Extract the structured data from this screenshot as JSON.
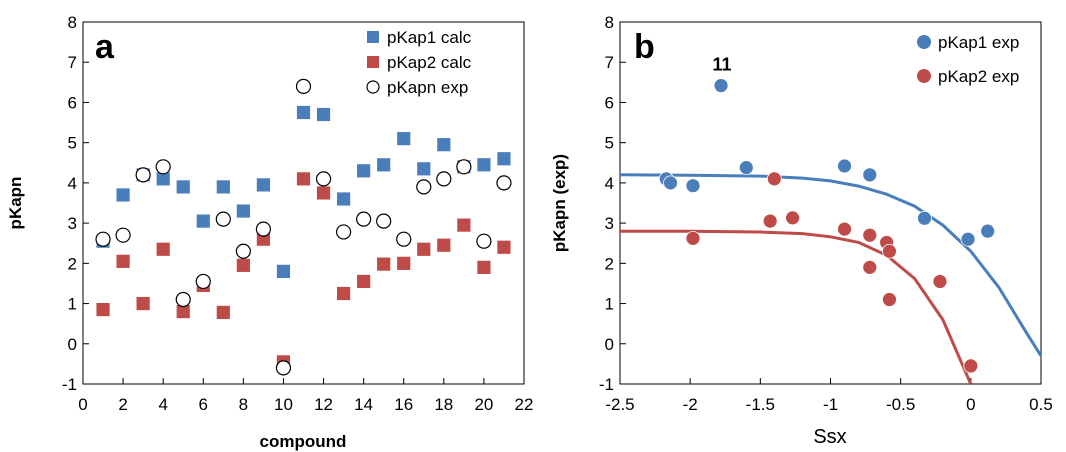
{
  "chart_data": [
    {
      "type": "scatter",
      "panel_label": "a",
      "xlabel": "compound",
      "ylabel": "pKapn",
      "xlim": [
        0,
        22
      ],
      "ylim": [
        -1,
        8
      ],
      "xticks": [
        "0",
        "2",
        "4",
        "6",
        "8",
        "10",
        "12",
        "14",
        "16",
        "18",
        "20",
        "22"
      ],
      "yticks": [
        "-1",
        "0",
        "1",
        "2",
        "3",
        "4",
        "5",
        "6",
        "7",
        "8"
      ],
      "legend_position": "top-right",
      "series": [
        {
          "name": "pKap1 calc",
          "marker": "square",
          "color": "#4a7ebb",
          "x": [
            1,
            2,
            3,
            4,
            5,
            6,
            7,
            8,
            9,
            10,
            11,
            12,
            13,
            14,
            15,
            16,
            17,
            18,
            19,
            20,
            21
          ],
          "y": [
            2.55,
            3.7,
            4.2,
            4.1,
            3.9,
            3.05,
            3.9,
            3.3,
            3.95,
            1.8,
            5.75,
            5.7,
            3.6,
            4.3,
            4.45,
            5.1,
            4.35,
            4.95,
            4.4,
            4.45,
            4.6
          ]
        },
        {
          "name": "pKap2 calc",
          "marker": "square",
          "color": "#be4b48",
          "x": [
            1,
            2,
            3,
            4,
            5,
            6,
            7,
            8,
            9,
            10,
            11,
            12,
            13,
            14,
            15,
            16,
            17,
            18,
            19,
            20,
            21
          ],
          "y": [
            0.85,
            2.05,
            1.0,
            2.35,
            0.8,
            1.45,
            0.78,
            1.95,
            2.6,
            -0.45,
            4.1,
            3.75,
            1.25,
            1.55,
            1.98,
            2.0,
            2.35,
            2.45,
            2.95,
            1.9,
            2.4
          ]
        },
        {
          "name": "pKapn exp",
          "marker": "circle-open",
          "color": "#000000",
          "x": [
            1,
            2,
            3,
            4,
            5,
            6,
            7,
            8,
            9,
            10,
            11,
            12,
            13,
            14,
            15,
            16,
            17,
            18,
            19,
            20,
            21
          ],
          "y": [
            2.6,
            2.7,
            4.2,
            4.4,
            1.1,
            1.55,
            3.1,
            2.3,
            2.85,
            -0.6,
            6.4,
            4.1,
            2.78,
            3.1,
            3.05,
            2.6,
            3.9,
            4.1,
            4.4,
            2.55,
            4.0
          ]
        }
      ]
    },
    {
      "type": "scatter",
      "panel_label": "b",
      "xlabel": "Ssx",
      "ylabel": "pKapn (exp)",
      "xlim": [
        -2.5,
        0.5
      ],
      "ylim": [
        -1,
        8
      ],
      "xticks": [
        "-2.5",
        "-2",
        "-1.5",
        "-1",
        "-0.5",
        "0",
        "0.5"
      ],
      "yticks": [
        "-1",
        "0",
        "1",
        "2",
        "3",
        "4",
        "5",
        "6",
        "7",
        "8"
      ],
      "legend_position": "top-right",
      "annotation": {
        "text": "11",
        "x": -1.77,
        "y": 6.45
      },
      "series": [
        {
          "name": "pKap1 exp",
          "marker": "circle",
          "color": "#4a7ebb",
          "x": [
            -2.17,
            -2.14,
            -1.98,
            -1.6,
            -1.78,
            -0.9,
            -0.72,
            -0.33,
            -0.02,
            0.12
          ],
          "y": [
            4.1,
            4.0,
            3.93,
            4.38,
            6.42,
            4.42,
            4.2,
            3.12,
            2.6,
            2.8
          ],
          "trend": {
            "x": [
              -2.5,
              -2.0,
              -1.5,
              -1.2,
              -1.0,
              -0.8,
              -0.6,
              -0.4,
              -0.2,
              0.0,
              0.2,
              0.4,
              0.5
            ],
            "y": [
              4.2,
              4.19,
              4.17,
              4.12,
              4.05,
              3.92,
              3.72,
              3.42,
              2.95,
              2.3,
              1.4,
              0.25,
              -0.3
            ]
          }
        },
        {
          "name": "pKap2 exp",
          "marker": "circle",
          "color": "#be4b48",
          "x": [
            -1.98,
            -1.4,
            -1.43,
            -1.27,
            -0.9,
            -0.72,
            -0.72,
            -0.6,
            -0.58,
            -0.58,
            -0.22,
            0.0
          ],
          "y": [
            2.62,
            4.1,
            3.05,
            3.13,
            2.85,
            2.7,
            1.9,
            2.52,
            2.3,
            1.1,
            1.55,
            -0.55
          ],
          "trend": {
            "x": [
              -2.5,
              -2.0,
              -1.5,
              -1.2,
              -1.0,
              -0.8,
              -0.6,
              -0.4,
              -0.2,
              -0.1,
              0.0
            ],
            "y": [
              2.8,
              2.8,
              2.78,
              2.74,
              2.66,
              2.52,
              2.2,
              1.62,
              0.6,
              -0.2,
              -1.0
            ]
          }
        }
      ]
    }
  ]
}
